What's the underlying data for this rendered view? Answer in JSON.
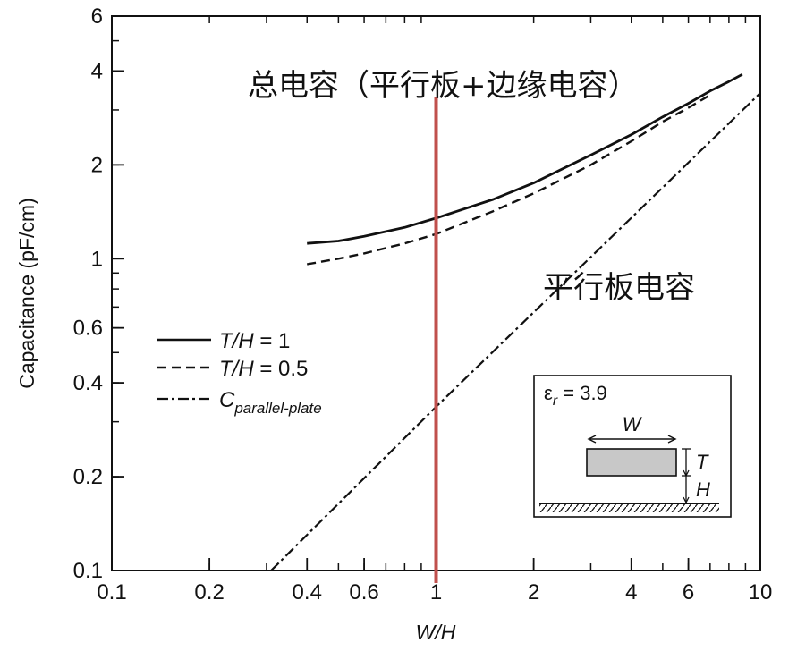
{
  "chart_data": {
    "type": "line",
    "x_scale": "log",
    "y_scale": "log",
    "xlabel": "W/H",
    "ylabel": "Capacitance (pF/cm)",
    "xlim": [
      0.1,
      10
    ],
    "ylim": [
      0.1,
      6
    ],
    "x_ticks": [
      0.1,
      0.2,
      0.4,
      0.6,
      1,
      2,
      4,
      6,
      10
    ],
    "x_tick_labels": [
      "0.1",
      "0.2",
      "0.4",
      "0.6",
      "1",
      "2",
      "4",
      "6",
      "10"
    ],
    "y_ticks": [
      0.1,
      0.2,
      0.4,
      0.6,
      1,
      2,
      4,
      6
    ],
    "y_tick_labels": [
      "0.1",
      "0.2",
      "0.4",
      "0.6",
      "1",
      "2",
      "4",
      "6"
    ],
    "grid": false,
    "legend_position": "left-middle",
    "series": [
      {
        "name_prefix": "T/H",
        "name_suffix": " = 1",
        "style": "solid",
        "x": [
          0.4,
          0.5,
          0.6,
          0.8,
          1.0,
          1.5,
          2.0,
          3.0,
          4.0,
          5.0,
          6.0,
          7.0,
          8.0,
          8.8
        ],
        "y": [
          1.12,
          1.14,
          1.18,
          1.26,
          1.35,
          1.55,
          1.75,
          2.15,
          2.5,
          2.85,
          3.15,
          3.45,
          3.7,
          3.9
        ]
      },
      {
        "name_prefix": "T/H",
        "name_suffix": " = 0.5",
        "style": "dashed",
        "x": [
          0.4,
          0.5,
          0.6,
          0.8,
          1.0,
          1.5,
          2.0,
          3.0,
          4.0,
          5.0,
          6.0,
          7.0
        ],
        "y": [
          0.96,
          1.0,
          1.04,
          1.12,
          1.2,
          1.42,
          1.62,
          2.0,
          2.38,
          2.75,
          3.05,
          3.35
        ]
      },
      {
        "name_prefix": "C",
        "name_subscript": "parallel-plate",
        "style": "dash-dot",
        "x": [
          0.31,
          1.0,
          10.0
        ],
        "y": [
          0.1,
          0.335,
          3.4
        ]
      }
    ],
    "annotations": {
      "total": "总电容（平行板+边缘电容）",
      "parallel": "平行板电容",
      "marker_line_x": 1.0,
      "marker_line_color": "#c0504d"
    },
    "inset": {
      "eps_symbol": "ε",
      "eps_sub": "r",
      "eps_value": " = 3.9",
      "w_label": "W",
      "t_label": "T",
      "h_label": "H"
    }
  }
}
